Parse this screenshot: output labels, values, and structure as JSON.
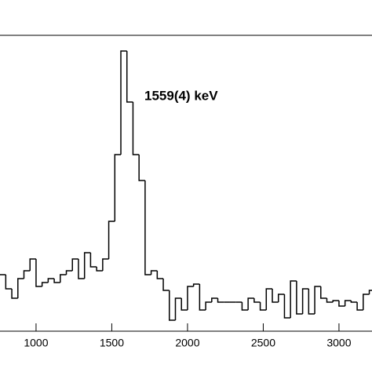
{
  "chart_data": {
    "type": "histogram",
    "annotation": "1559(4) keV",
    "bins": [
      760,
      800,
      840,
      880,
      920,
      960,
      1000,
      1040,
      1080,
      1120,
      1160,
      1200,
      1240,
      1280,
      1320,
      1360,
      1400,
      1440,
      1480,
      1520,
      1560,
      1600,
      1640,
      1680,
      1720,
      1760,
      1800,
      1840,
      1880,
      1920,
      1960,
      2000,
      2040,
      2080,
      2120,
      2160,
      2200,
      2240,
      2280,
      2320,
      2360,
      2400,
      2440,
      2480,
      2520,
      2560,
      2600,
      2640,
      2680,
      2720,
      2760,
      2800,
      2840,
      2880,
      2920,
      2960,
      3000,
      3040,
      3080,
      3120,
      3160,
      3200,
      3240
    ],
    "values": [
      72,
      54,
      42,
      67,
      77,
      92,
      57,
      62,
      67,
      62,
      72,
      77,
      92,
      67,
      100,
      82,
      77,
      92,
      140,
      225,
      357,
      292,
      225,
      192,
      72,
      77,
      67,
      52,
      14,
      42,
      27,
      57,
      60,
      27,
      37,
      42,
      37,
      37,
      37,
      37,
      27,
      42,
      37,
      27,
      54,
      37,
      47,
      17,
      64,
      22,
      54,
      22,
      57,
      42,
      37,
      39,
      32,
      39,
      37,
      27,
      47,
      52
    ],
    "color": "#000000",
    "xlim": [
      762,
      3218
    ],
    "xticks": [
      1000,
      1500,
      2000,
      2500,
      3000
    ],
    "ylim": [
      0,
      377
    ]
  }
}
